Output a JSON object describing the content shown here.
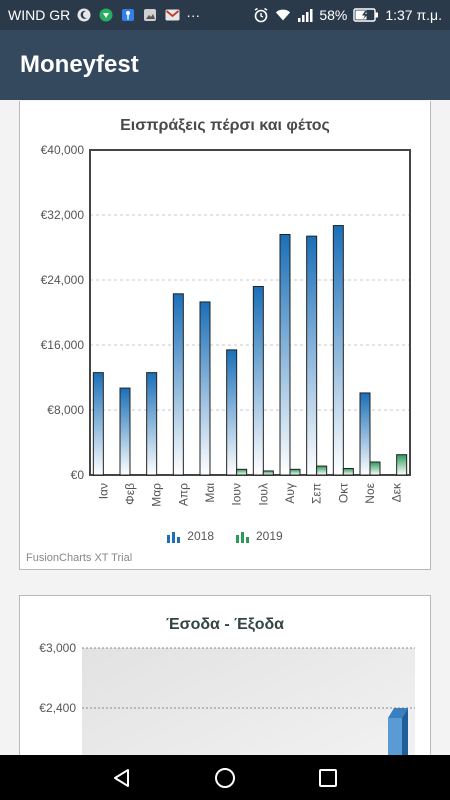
{
  "status_bar": {
    "carrier": "WIND GR",
    "battery": "58%",
    "time": "1:37 π.μ.",
    "more": "···"
  },
  "app_bar": {
    "title": "Moneyfest"
  },
  "charts": [
    {
      "chart_data": {
        "type": "bar",
        "title": "Εισπράξεις πέρσι και φέτος",
        "categories": [
          "Ιαν",
          "Φεβ",
          "Μαρ",
          "Απρ",
          "Μαι",
          "Ιουν",
          "Ιουλ",
          "Αυγ",
          "Σεπ",
          "Οκτ",
          "Νοε",
          "Δεκ"
        ],
        "series": [
          {
            "name": "2018",
            "color": "#1a6fb8",
            "values": [
              12600,
              10700,
              12600,
              22300,
              21300,
              15400,
              23200,
              29600,
              29400,
              30700,
              10100,
              0
            ]
          },
          {
            "name": "2019",
            "color": "#2e9a5a",
            "values": [
              0,
              0,
              0,
              0,
              0,
              700,
              500,
              700,
              1100,
              800,
              1600,
              2500
            ]
          }
        ],
        "yticks": [
          "€0",
          "€8,000",
          "€16,000",
          "€24,000",
          "€32,000",
          "€40,000"
        ],
        "ylim": [
          0,
          40000
        ],
        "grid": true,
        "legend": "bottom-center"
      },
      "watermark": "FusionCharts XT Trial"
    },
    {
      "chart_data": {
        "type": "bar",
        "title": "Έσοδα - Έξοδα",
        "yticks": [
          "€2,400",
          "€3,000"
        ],
        "ylim": [
          0,
          3000
        ],
        "grid": true
      }
    }
  ]
}
